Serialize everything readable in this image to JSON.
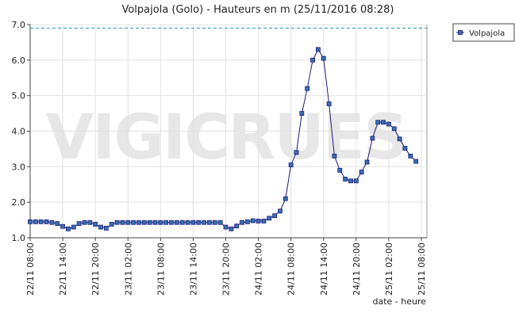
{
  "chart_data": {
    "type": "line",
    "title": "Volpajola (Golo) - Hauteurs en m (25/11/2016 08:28)",
    "x_label": "date - heure",
    "watermark": "VIGICRUES",
    "categories": [
      "22/11 08:00",
      null,
      null,
      null,
      null,
      null,
      "22/11 14:00",
      null,
      null,
      null,
      null,
      null,
      "22/11 20:00",
      null,
      null,
      null,
      null,
      null,
      "23/11 02:00",
      null,
      null,
      null,
      null,
      null,
      "23/11 08:00",
      null,
      null,
      null,
      null,
      null,
      "23/11 14:00",
      null,
      null,
      null,
      null,
      null,
      "23/11 20:00",
      null,
      null,
      null,
      null,
      null,
      "24/11 02:00",
      null,
      null,
      null,
      null,
      null,
      "24/11 08:00",
      null,
      null,
      null,
      null,
      null,
      "24/11 14:00",
      null,
      null,
      null,
      null,
      null,
      "24/11 20:00",
      null,
      null,
      null,
      null,
      null,
      "25/11 02:00",
      null,
      null,
      null,
      null,
      null,
      "25/11 08:00"
    ],
    "series": [
      {
        "name": "Volpajola",
        "color": "#1a1a7a",
        "marker_color": "#3a6fb0",
        "values": [
          1.45,
          1.45,
          1.45,
          1.45,
          1.43,
          1.4,
          1.32,
          1.25,
          1.3,
          1.4,
          1.43,
          1.43,
          1.38,
          1.3,
          1.27,
          1.38,
          1.43,
          1.43,
          1.43,
          1.43,
          1.43,
          1.43,
          1.43,
          1.43,
          1.43,
          1.43,
          1.43,
          1.43,
          1.43,
          1.43,
          1.43,
          1.43,
          1.43,
          1.43,
          1.43,
          1.43,
          1.3,
          1.25,
          1.33,
          1.43,
          1.45,
          1.48,
          1.47,
          1.47,
          1.55,
          1.62,
          1.75,
          2.1,
          3.05,
          3.4,
          4.5,
          5.2,
          6.0,
          6.3,
          6.05,
          4.77,
          3.3,
          2.9,
          2.65,
          2.6,
          2.6,
          2.85,
          3.13,
          3.8,
          4.25,
          4.25,
          4.2,
          4.07,
          3.78,
          3.52,
          3.3,
          3.15,
          null
        ]
      }
    ],
    "threshold": 6.9,
    "threshold_color": "#2a9bb0",
    "ylim": [
      1,
      7
    ],
    "yticks": [
      {
        "value": 1,
        "label": "1.0"
      },
      {
        "value": 2,
        "label": "2.0"
      },
      {
        "value": 3,
        "label": "3.0"
      },
      {
        "value": 4,
        "label": "4.0"
      },
      {
        "value": 5,
        "label": "5.0"
      },
      {
        "value": 6,
        "label": "6.0"
      },
      {
        "value": 7,
        "label": "7.0"
      }
    ],
    "grid": true,
    "legend": "top-right"
  }
}
